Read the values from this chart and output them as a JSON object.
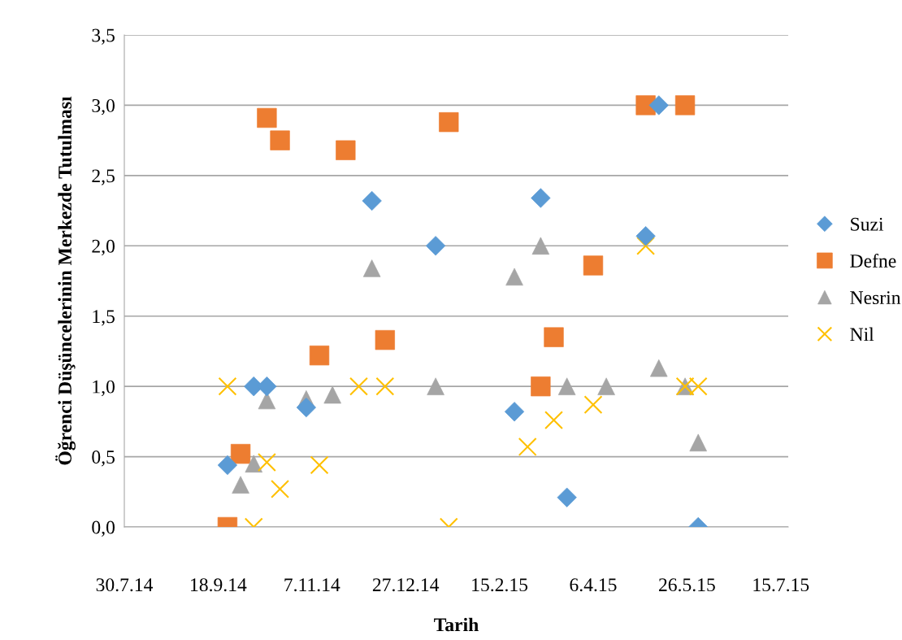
{
  "chart_data": {
    "type": "scatter",
    "xlabel": "Tarih",
    "ylabel": "Öğrenci Düşüncelerinin Merkezde Tutulması",
    "xlim": [
      "2014-07-30",
      "2015-07-19"
    ],
    "xticks": [
      {
        "value": "2014-07-30",
        "label": "30.7.14"
      },
      {
        "value": "2014-09-18",
        "label": "18.9.14"
      },
      {
        "value": "2014-11-07",
        "label": "7.11.14"
      },
      {
        "value": "2014-12-27",
        "label": "27.12.14"
      },
      {
        "value": "2015-02-15",
        "label": "15.2.15"
      },
      {
        "value": "2015-04-06",
        "label": "6.4.15"
      },
      {
        "value": "2015-05-26",
        "label": "26.5.15"
      },
      {
        "value": "2015-07-15",
        "label": "15.7.15"
      }
    ],
    "ylim": [
      0,
      3.5
    ],
    "yticks": [
      {
        "value": 0,
        "label": "0,0"
      },
      {
        "value": 0.5,
        "label": "0,5"
      },
      {
        "value": 1.0,
        "label": "1,0"
      },
      {
        "value": 1.5,
        "label": "1,5"
      },
      {
        "value": 2.0,
        "label": "2,0"
      },
      {
        "value": 2.5,
        "label": "2,5"
      },
      {
        "value": 3.0,
        "label": "3,0"
      },
      {
        "value": 3.5,
        "label": "3,5"
      }
    ],
    "grid": "y",
    "legend": "right",
    "series": [
      {
        "name": "Suzi",
        "color": "#5b9bd5",
        "marker": "diamond",
        "x": [
          "2014-09-23",
          "2014-10-07",
          "2014-10-14",
          "2014-11-04",
          "2014-12-09",
          "2015-01-12",
          "2015-02-23",
          "2015-03-09",
          "2015-03-23",
          "2015-05-04",
          "2015-05-11",
          "2015-06-01"
        ],
        "values": [
          0.44,
          1.0,
          1.0,
          0.85,
          2.32,
          2.0,
          0.82,
          2.34,
          0.21,
          2.07,
          3.0,
          0.0
        ]
      },
      {
        "name": "Defne",
        "color": "#ed7d31",
        "marker": "square",
        "x": [
          "2014-09-23",
          "2014-09-30",
          "2014-10-14",
          "2014-10-21",
          "2014-11-11",
          "2014-11-25",
          "2014-12-16",
          "2015-01-19",
          "2015-03-09",
          "2015-03-16",
          "2015-04-06",
          "2015-05-04",
          "2015-05-25"
        ],
        "values": [
          0.0,
          0.52,
          2.91,
          2.75,
          1.22,
          2.68,
          1.33,
          2.88,
          1.0,
          1.35,
          1.86,
          3.0,
          3.0
        ]
      },
      {
        "name": "Nesrin",
        "color": "#a5a5a5",
        "marker": "triangle",
        "x": [
          "2014-09-30",
          "2014-10-07",
          "2014-10-14",
          "2014-11-04",
          "2014-11-18",
          "2014-12-09",
          "2015-01-12",
          "2015-02-23",
          "2015-03-09",
          "2015-03-23",
          "2015-04-13",
          "2015-05-11",
          "2015-05-25",
          "2015-06-01"
        ],
        "values": [
          0.3,
          0.45,
          0.9,
          0.91,
          0.94,
          1.84,
          1.0,
          1.78,
          2.0,
          1.0,
          1.0,
          1.13,
          1.0,
          0.6
        ]
      },
      {
        "name": "Nil",
        "color": "#ffc000",
        "marker": "cross",
        "x": [
          "2014-09-23",
          "2014-10-07",
          "2014-10-14",
          "2014-10-21",
          "2014-11-11",
          "2014-12-02",
          "2014-12-16",
          "2015-01-19",
          "2015-03-02",
          "2015-03-16",
          "2015-04-06",
          "2015-05-04",
          "2015-05-25",
          "2015-06-01"
        ],
        "values": [
          1.0,
          0.0,
          0.46,
          0.27,
          0.44,
          1.0,
          1.0,
          0.0,
          0.57,
          0.76,
          0.87,
          2.0,
          1.0,
          1.0
        ]
      }
    ]
  }
}
